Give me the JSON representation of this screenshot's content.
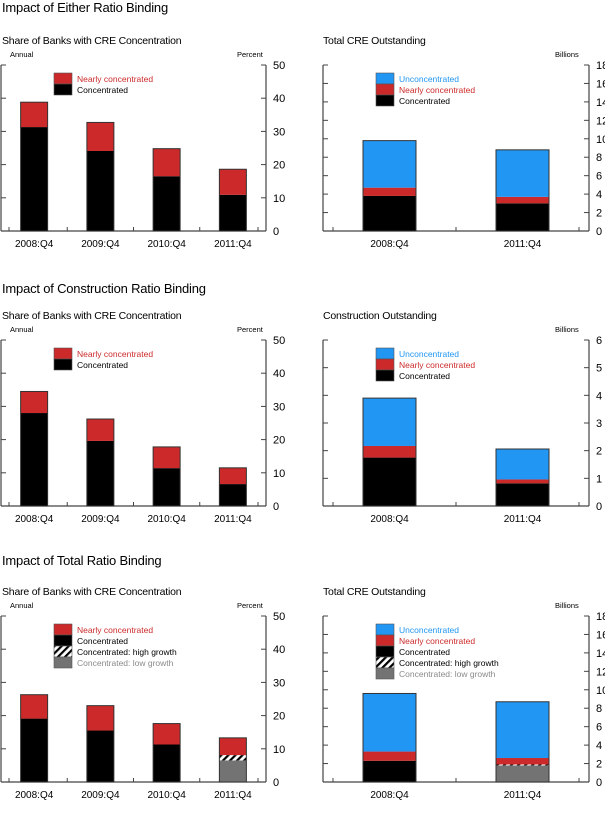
{
  "colors": {
    "unconcentrated": "#2196f3",
    "nearly": "#cc2a2a",
    "concentrated": "#000000",
    "low_growth": "#737373",
    "axis": "#444444",
    "legend_unconcentrated_text": "#2196f3",
    "legend_nearly_text": "#cc2a2a",
    "legend_low_growth_text": "#8a8a8a"
  },
  "sections": [
    {
      "title": "Impact of Either Ratio Binding"
    },
    {
      "title": "Impact of Construction Ratio Binding"
    },
    {
      "title": "Impact of Total Ratio Binding"
    }
  ],
  "chart_data": [
    {
      "type": "bar",
      "stacked": true,
      "title": "Share of Banks with CRE Concentration",
      "left_label": "Annual",
      "unit_label": "Percent",
      "categories": [
        "2008:Q4",
        "2009:Q4",
        "2010:Q4",
        "2011:Q4"
      ],
      "ylim": [
        0,
        50
      ],
      "yticks": [
        0,
        10,
        20,
        30,
        40,
        50
      ],
      "series": [
        {
          "name": "Concentrated",
          "key": "concentrated",
          "values": [
            31.3,
            24.1,
            16.5,
            10.9
          ]
        },
        {
          "name": "Nearly concentrated",
          "key": "nearly",
          "values": [
            7.5,
            8.6,
            8.3,
            7.7
          ]
        }
      ],
      "legend": [
        {
          "label": "Nearly concentrated",
          "key": "nearly"
        },
        {
          "label": "Concentrated",
          "key": "concentrated"
        }
      ]
    },
    {
      "type": "bar",
      "stacked": true,
      "title": "Total CRE Outstanding",
      "unit_label": "Billions",
      "categories": [
        "2008:Q4",
        "2011:Q4"
      ],
      "ylim": [
        0,
        18
      ],
      "yticks": [
        0,
        2,
        4,
        6,
        8,
        10,
        12,
        14,
        16,
        18
      ],
      "series": [
        {
          "name": "Concentrated",
          "key": "concentrated",
          "values": [
            3.8,
            3.0
          ]
        },
        {
          "name": "Nearly concentrated",
          "key": "nearly",
          "values": [
            0.9,
            0.7
          ]
        },
        {
          "name": "Unconcentrated",
          "key": "unconcentrated",
          "values": [
            5.1,
            5.1
          ]
        }
      ],
      "legend": [
        {
          "label": "Unconcentrated",
          "key": "unconcentrated"
        },
        {
          "label": "Nearly concentrated",
          "key": "nearly"
        },
        {
          "label": "Concentrated",
          "key": "concentrated"
        }
      ]
    },
    {
      "type": "bar",
      "stacked": true,
      "title": "Share of Banks with CRE Concentration",
      "left_label": "Annual",
      "unit_label": "Percent",
      "categories": [
        "2008:Q4",
        "2009:Q4",
        "2010:Q4",
        "2011:Q4"
      ],
      "ylim": [
        0,
        50
      ],
      "yticks": [
        0,
        10,
        20,
        30,
        40,
        50
      ],
      "series": [
        {
          "name": "Concentrated",
          "key": "concentrated",
          "values": [
            28.0,
            19.6,
            11.4,
            6.6
          ]
        },
        {
          "name": "Nearly concentrated",
          "key": "nearly",
          "values": [
            6.5,
            6.6,
            6.4,
            4.9
          ]
        }
      ],
      "legend": [
        {
          "label": "Nearly concentrated",
          "key": "nearly"
        },
        {
          "label": "Concentrated",
          "key": "concentrated"
        }
      ]
    },
    {
      "type": "bar",
      "stacked": true,
      "title": "Construction Outstanding",
      "unit_label": "Billions",
      "categories": [
        "2008:Q4",
        "2011:Q4"
      ],
      "ylim": [
        0,
        6
      ],
      "yticks": [
        0,
        1,
        2,
        3,
        4,
        5,
        6
      ],
      "series": [
        {
          "name": "Concentrated",
          "key": "concentrated",
          "values": [
            1.75,
            0.82
          ]
        },
        {
          "name": "Nearly concentrated",
          "key": "nearly",
          "values": [
            0.42,
            0.14
          ]
        },
        {
          "name": "Unconcentrated",
          "key": "unconcentrated",
          "values": [
            1.73,
            1.1
          ]
        }
      ],
      "legend": [
        {
          "label": "Unconcentrated",
          "key": "unconcentrated"
        },
        {
          "label": "Nearly concentrated",
          "key": "nearly"
        },
        {
          "label": "Concentrated",
          "key": "concentrated"
        }
      ]
    },
    {
      "type": "bar",
      "stacked": true,
      "title": "Share of Banks with CRE Concentration",
      "left_label": "Annual",
      "unit_label": "Percent",
      "categories": [
        "2008:Q4",
        "2009:Q4",
        "2010:Q4",
        "2011:Q4"
      ],
      "ylim": [
        0,
        50
      ],
      "yticks": [
        0,
        10,
        20,
        30,
        40,
        50
      ],
      "series": [
        {
          "name": "Concentrated: low growth",
          "key": "low_growth",
          "values": [
            0,
            0,
            0,
            6.5
          ]
        },
        {
          "name": "Concentrated: high growth",
          "key": "high_growth",
          "values": [
            0,
            0,
            0,
            1.6
          ]
        },
        {
          "name": "Concentrated",
          "key": "concentrated",
          "values": [
            19.1,
            15.5,
            11.3,
            0
          ]
        },
        {
          "name": "Nearly concentrated",
          "key": "nearly",
          "values": [
            7.2,
            7.5,
            6.3,
            5.2
          ]
        }
      ],
      "legend": [
        {
          "label": "Nearly concentrated",
          "key": "nearly"
        },
        {
          "label": "Concentrated",
          "key": "concentrated"
        },
        {
          "label": "Concentrated: high growth",
          "key": "high_growth"
        },
        {
          "label": "Concentrated: low growth",
          "key": "low_growth"
        }
      ]
    },
    {
      "type": "bar",
      "stacked": true,
      "title": "Total CRE Outstanding",
      "unit_label": "Billions",
      "categories": [
        "2008:Q4",
        "2011:Q4"
      ],
      "ylim": [
        0,
        18
      ],
      "yticks": [
        0,
        2,
        4,
        6,
        8,
        10,
        12,
        14,
        16,
        18
      ],
      "series": [
        {
          "name": "Concentrated: low growth",
          "key": "low_growth",
          "values": [
            0,
            1.8
          ]
        },
        {
          "name": "Concentrated: high growth",
          "key": "high_growth",
          "values": [
            0,
            0.1
          ]
        },
        {
          "name": "Concentrated",
          "key": "concentrated",
          "values": [
            2.3,
            0
          ]
        },
        {
          "name": "Nearly concentrated",
          "key": "nearly",
          "values": [
            1.0,
            0.7
          ]
        },
        {
          "name": "Unconcentrated",
          "key": "unconcentrated",
          "values": [
            6.3,
            6.1
          ]
        }
      ],
      "legend": [
        {
          "label": "Unconcentrated",
          "key": "unconcentrated"
        },
        {
          "label": "Nearly concentrated",
          "key": "nearly"
        },
        {
          "label": "Concentrated",
          "key": "concentrated"
        },
        {
          "label": "Concentrated: high growth",
          "key": "high_growth"
        },
        {
          "label": "Concentrated: low growth",
          "key": "low_growth"
        }
      ]
    }
  ]
}
